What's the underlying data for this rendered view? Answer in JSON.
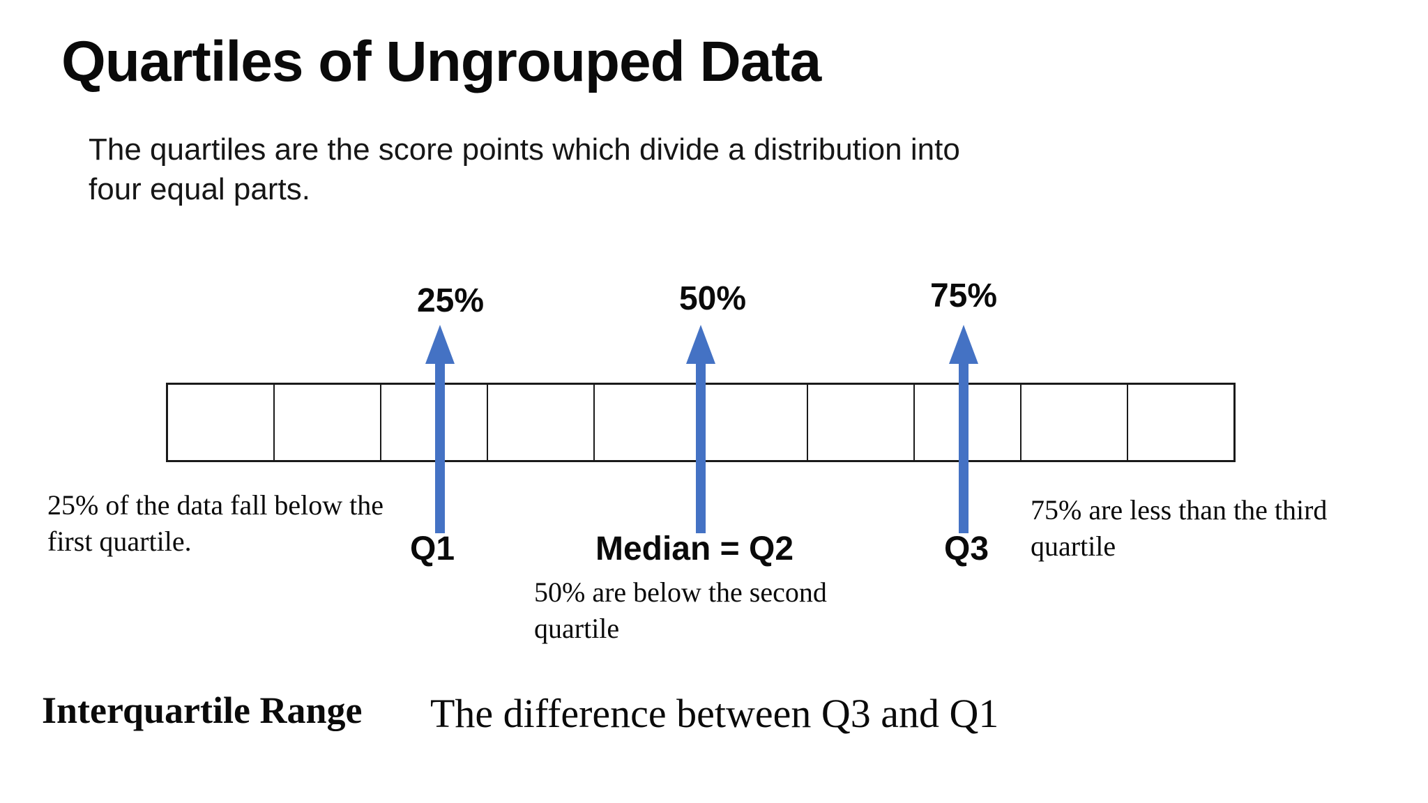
{
  "slide": {
    "title": "Quartiles of Ungrouped Data",
    "subtitle": {
      "line1": "The quartiles are the score points which divide a distribution into",
      "line2": "four equal parts."
    },
    "diagram": {
      "cell_count": 10,
      "arrow_color": "#4472c4",
      "bar_border_color": "#1a1a1a",
      "markers": [
        {
          "percent_label": "25%",
          "quartile_label": "Q1",
          "position_percent": 25,
          "icon": "arrow-up"
        },
        {
          "percent_label": "50%",
          "quartile_label": "Median = Q2",
          "position_percent": 50,
          "icon": "arrow-up"
        },
        {
          "percent_label": "75%",
          "quartile_label": "Q3",
          "position_percent": 75,
          "icon": "arrow-up"
        }
      ],
      "annotations": {
        "q1": {
          "line1": "25% of the data fall below the",
          "line2": "first quartile."
        },
        "q2": {
          "line1": "50% are below the second",
          "line2": "quartile"
        },
        "q3": {
          "line1": "75% are less than the third",
          "line2": "quartile"
        }
      }
    },
    "footer": {
      "term": "Interquartile Range",
      "definition": "The difference between Q3 and Q1"
    }
  }
}
